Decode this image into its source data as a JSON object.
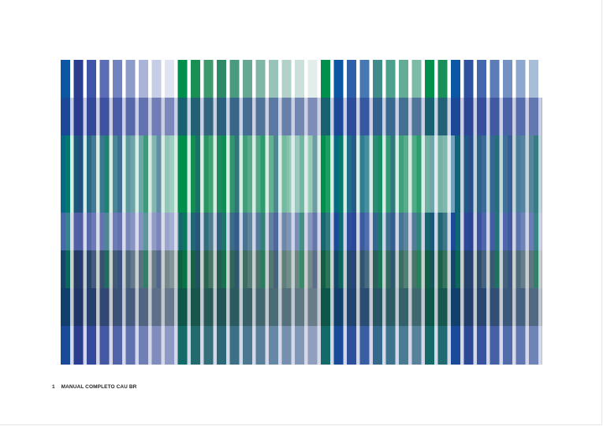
{
  "footer": {
    "page_number": "1",
    "title": "MANUAL COMPLETO CAU BR"
  },
  "palette": {
    "green": "#008f4c",
    "blue": "#2a3d8f",
    "royal": "#0c57a3",
    "dark": "#1c3a3a",
    "pale_blue": "#c9cee8",
    "pale_green": "#b8e0c6"
  }
}
